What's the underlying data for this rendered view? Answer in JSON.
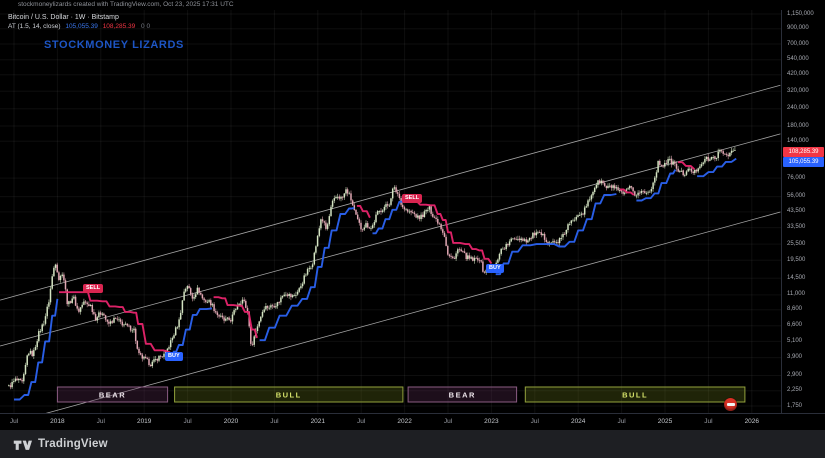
{
  "header": {
    "credit": "stockmoneylizards created with TradingView.com, Oct 23, 2025 17:31 UTC"
  },
  "legend": {
    "title": "Bitcoin / U.S. Dollar · 1W · Bitstamp",
    "symbol": "Bitcoin / U.S. Dollar",
    "interval": "1W",
    "exchange": "Bitstamp",
    "indicator": "AT (1.5, 14, close)",
    "value_blue": "105,055.39",
    "value_red": "108,285.39",
    "extra": "0 0"
  },
  "watermark": "STOCKMONEY LIZARDS",
  "footer": {
    "brand": "TradingView"
  },
  "sticker": {
    "icon": "no-entry-emoji"
  },
  "chart_data": {
    "type": "candlestick",
    "title": "Bitcoin / U.S. Dollar weekly with AT trailing-stop indicator and BEAR/BULL regime boxes",
    "x_axis": {
      "start_year": 2017.44,
      "end_year": 2026.08,
      "scale": "time"
    },
    "y_axis": {
      "scale": "log",
      "range": [
        1750,
        1150000
      ],
      "currency": "USD"
    },
    "grid": true,
    "colors": {
      "at_bull": "#2b63f2",
      "at_bear": "#e8246d",
      "candle_up": "#d4e4c2",
      "candle_down": "#e2a8b4",
      "trendline": "#cfcfcf",
      "grid": "rgba(255,255,255,0.055)",
      "bear_box_fill": "rgba(95,45,90,0.30)",
      "bear_box_stroke": "#8a5c82",
      "bear_box_text": "#ece4ea",
      "bull_box_fill": "rgba(110,130,30,0.28)",
      "bull_box_stroke": "#93a23c",
      "bull_box_text": "#d6e36a"
    },
    "last_price": {
      "red": "108,285.39",
      "blue": "105,055.39"
    },
    "y_ticks": [
      {
        "label": "1,150,000",
        "value": 1150000
      },
      {
        "label": "900,000",
        "value": 900000
      },
      {
        "label": "700,000",
        "value": 700000
      },
      {
        "label": "540,000",
        "value": 540000
      },
      {
        "label": "420,000",
        "value": 420000
      },
      {
        "label": "320,000",
        "value": 320000
      },
      {
        "label": "240,000",
        "value": 240000
      },
      {
        "label": "180,000",
        "value": 180000
      },
      {
        "label": "140,000",
        "value": 140000
      },
      {
        "label": "76,000",
        "value": 76000
      },
      {
        "label": "56,000",
        "value": 56000
      },
      {
        "label": "43,500",
        "value": 43500
      },
      {
        "label": "33,500",
        "value": 33500
      },
      {
        "label": "25,500",
        "value": 25500
      },
      {
        "label": "19,500",
        "value": 19500
      },
      {
        "label": "14,500",
        "value": 14500
      },
      {
        "label": "11,000",
        "value": 11000
      },
      {
        "label": "8,600",
        "value": 8600
      },
      {
        "label": "6,600",
        "value": 6600
      },
      {
        "label": "5,100",
        "value": 5100
      },
      {
        "label": "3,900",
        "value": 3900
      },
      {
        "label": "2,900",
        "value": 2900
      },
      {
        "label": "2,250",
        "value": 2250
      },
      {
        "label": "1,750",
        "value": 1750
      }
    ],
    "x_ticks": [
      {
        "label": "Jul",
        "year": 2017.5,
        "type": "month"
      },
      {
        "label": "2018",
        "year": 2018,
        "type": "year"
      },
      {
        "label": "Jul",
        "year": 2018.5,
        "type": "month"
      },
      {
        "label": "2019",
        "year": 2019,
        "type": "year"
      },
      {
        "label": "Jul",
        "year": 2019.5,
        "type": "month"
      },
      {
        "label": "2020",
        "year": 2020,
        "type": "year"
      },
      {
        "label": "Jul",
        "year": 2020.5,
        "type": "month"
      },
      {
        "label": "2021",
        "year": 2021,
        "type": "year"
      },
      {
        "label": "Jul",
        "year": 2021.5,
        "type": "month"
      },
      {
        "label": "2022",
        "year": 2022,
        "type": "year"
      },
      {
        "label": "Jul",
        "year": 2022.5,
        "type": "month"
      },
      {
        "label": "2023",
        "year": 2023,
        "type": "year"
      },
      {
        "label": "Jul",
        "year": 2023.5,
        "type": "month"
      },
      {
        "label": "2024",
        "year": 2024,
        "type": "year"
      },
      {
        "label": "Jul",
        "year": 2024.5,
        "type": "month"
      },
      {
        "label": "2025",
        "year": 2025,
        "type": "year"
      },
      {
        "label": "Jul",
        "year": 2025.5,
        "type": "month"
      },
      {
        "label": "2026",
        "year": 2026,
        "type": "year"
      }
    ],
    "trendlines": [
      {
        "x1": 2017.34,
        "p1": 10100,
        "x2": 2026.33,
        "p2": 354000
      },
      {
        "x1": 2017.34,
        "p1": 4725,
        "x2": 2026.33,
        "p2": 158000
      },
      {
        "x1": 2017.8,
        "p1": 1508,
        "x2": 2026.33,
        "p2": 43400
      }
    ],
    "regimes": [
      {
        "label": "BEAR",
        "type": "bear",
        "start": 2018.0,
        "end": 2019.27
      },
      {
        "label": "BULL",
        "type": "bull",
        "start": 2019.35,
        "end": 2021.98
      },
      {
        "label": "BEAR",
        "type": "bear",
        "start": 2022.04,
        "end": 2023.29
      },
      {
        "label": "BULL",
        "type": "bull",
        "start": 2023.39,
        "end": 2025.92
      }
    ],
    "signals": [
      {
        "label": "SELL",
        "side": "sell",
        "year": 2018.42,
        "price": 12300
      },
      {
        "label": "BUY",
        "side": "buy",
        "year": 2019.37,
        "price": 3950
      },
      {
        "label": "SELL",
        "side": "sell",
        "year": 2022.1,
        "price": 54500
      },
      {
        "label": "BUY",
        "side": "buy",
        "year": 2023.06,
        "price": 17000
      }
    ],
    "price_series": [
      [
        2017.44,
        2400
      ],
      [
        2017.52,
        2700
      ],
      [
        2017.6,
        2550
      ],
      [
        2017.66,
        4300
      ],
      [
        2017.72,
        4100
      ],
      [
        2017.78,
        5700
      ],
      [
        2017.85,
        7200
      ],
      [
        2017.9,
        9800
      ],
      [
        2017.95,
        16500
      ],
      [
        2017.98,
        19000
      ],
      [
        2018.02,
        14000
      ],
      [
        2018.06,
        16300
      ],
      [
        2018.12,
        9200
      ],
      [
        2018.18,
        10800
      ],
      [
        2018.24,
        8300
      ],
      [
        2018.3,
        9700
      ],
      [
        2018.38,
        9300
      ],
      [
        2018.44,
        7500
      ],
      [
        2018.52,
        8400
      ],
      [
        2018.58,
        6700
      ],
      [
        2018.66,
        7400
      ],
      [
        2018.74,
        6900
      ],
      [
        2018.82,
        6400
      ],
      [
        2018.88,
        6300
      ],
      [
        2018.93,
        4100
      ],
      [
        2019.0,
        3800
      ],
      [
        2019.08,
        3500
      ],
      [
        2019.16,
        3900
      ],
      [
        2019.24,
        4100
      ],
      [
        2019.32,
        5300
      ],
      [
        2019.4,
        7100
      ],
      [
        2019.46,
        11800
      ],
      [
        2019.5,
        13000
      ],
      [
        2019.55,
        10400
      ],
      [
        2019.62,
        12200
      ],
      [
        2019.68,
        10100
      ],
      [
        2019.76,
        9800
      ],
      [
        2019.84,
        8000
      ],
      [
        2019.92,
        7200
      ],
      [
        2020.0,
        7300
      ],
      [
        2020.08,
        9600
      ],
      [
        2020.14,
        10200
      ],
      [
        2020.2,
        8000
      ],
      [
        2020.23,
        4600
      ],
      [
        2020.3,
        6500
      ],
      [
        2020.38,
        9000
      ],
      [
        2020.46,
        9100
      ],
      [
        2020.54,
        9600
      ],
      [
        2020.62,
        11600
      ],
      [
        2020.7,
        10600
      ],
      [
        2020.78,
        11800
      ],
      [
        2020.86,
        15500
      ],
      [
        2020.94,
        19000
      ],
      [
        2021.0,
        29000
      ],
      [
        2021.04,
        40000
      ],
      [
        2021.1,
        32000
      ],
      [
        2021.16,
        49000
      ],
      [
        2021.22,
        57000
      ],
      [
        2021.28,
        54000
      ],
      [
        2021.33,
        63000
      ],
      [
        2021.38,
        54000
      ],
      [
        2021.44,
        40000
      ],
      [
        2021.5,
        33000
      ],
      [
        2021.56,
        35500
      ],
      [
        2021.62,
        33000
      ],
      [
        2021.68,
        42000
      ],
      [
        2021.76,
        47000
      ],
      [
        2021.82,
        49000
      ],
      [
        2021.87,
        65000
      ],
      [
        2021.92,
        59000
      ],
      [
        2021.98,
        47000
      ],
      [
        2022.04,
        43500
      ],
      [
        2022.1,
        42500
      ],
      [
        2022.16,
        39000
      ],
      [
        2022.22,
        42000
      ],
      [
        2022.28,
        46500
      ],
      [
        2022.34,
        40000
      ],
      [
        2022.4,
        36000
      ],
      [
        2022.46,
        29500
      ],
      [
        2022.5,
        21000
      ],
      [
        2022.56,
        20000
      ],
      [
        2022.62,
        23500
      ],
      [
        2022.68,
        21500
      ],
      [
        2022.74,
        20000
      ],
      [
        2022.8,
        19500
      ],
      [
        2022.86,
        20500
      ],
      [
        2022.91,
        16000
      ],
      [
        2022.98,
        16700
      ],
      [
        2023.04,
        17000
      ],
      [
        2023.1,
        23000
      ],
      [
        2023.18,
        25000
      ],
      [
        2023.26,
        28500
      ],
      [
        2023.34,
        28000
      ],
      [
        2023.42,
        27000
      ],
      [
        2023.5,
        30500
      ],
      [
        2023.58,
        29500
      ],
      [
        2023.66,
        26500
      ],
      [
        2023.74,
        26000
      ],
      [
        2023.82,
        28500
      ],
      [
        2023.88,
        34500
      ],
      [
        2023.94,
        37500
      ],
      [
        2024.0,
        43000
      ],
      [
        2024.06,
        43000
      ],
      [
        2024.12,
        52000
      ],
      [
        2024.2,
        68000
      ],
      [
        2024.26,
        73000
      ],
      [
        2024.32,
        64500
      ],
      [
        2024.4,
        66500
      ],
      [
        2024.46,
        61000
      ],
      [
        2024.52,
        58000
      ],
      [
        2024.6,
        64500
      ],
      [
        2024.66,
        57500
      ],
      [
        2024.72,
        61000
      ],
      [
        2024.8,
        59500
      ],
      [
        2024.86,
        68500
      ],
      [
        2024.92,
        97000
      ],
      [
        2024.98,
        95000
      ],
      [
        2025.04,
        102000
      ],
      [
        2025.1,
        97000
      ],
      [
        2025.16,
        84500
      ],
      [
        2025.22,
        82000
      ],
      [
        2025.28,
        87000
      ],
      [
        2025.34,
        83500
      ],
      [
        2025.4,
        95000
      ],
      [
        2025.46,
        104000
      ],
      [
        2025.52,
        103500
      ],
      [
        2025.58,
        108500
      ],
      [
        2025.64,
        118000
      ],
      [
        2025.7,
        112500
      ],
      [
        2025.76,
        115500
      ],
      [
        2025.8,
        124000
      ],
      [
        2025.82,
        108285
      ]
    ],
    "at_segments": [
      {
        "side": "bull",
        "points": [
          [
            2017.5,
            1950
          ],
          [
            2017.62,
            2100
          ],
          [
            2017.7,
            2600
          ],
          [
            2017.78,
            3600
          ],
          [
            2017.86,
            5100
          ],
          [
            2017.94,
            7800
          ],
          [
            2018.0,
            10300
          ]
        ]
      },
      {
        "side": "bear",
        "points": [
          [
            2018.02,
            11500
          ],
          [
            2018.32,
            11500
          ],
          [
            2018.38,
            10000
          ],
          [
            2018.52,
            9900
          ],
          [
            2018.6,
            9100
          ],
          [
            2018.72,
            9000
          ],
          [
            2018.78,
            8300
          ],
          [
            2018.88,
            8200
          ],
          [
            2018.93,
            6800
          ],
          [
            2019.02,
            4900
          ],
          [
            2019.12,
            4400
          ],
          [
            2019.3,
            4250
          ]
        ]
      },
      {
        "side": "bull",
        "points": [
          [
            2019.33,
            4300
          ],
          [
            2019.4,
            4800
          ],
          [
            2019.48,
            6200
          ],
          [
            2019.56,
            7900
          ],
          [
            2019.64,
            8700
          ],
          [
            2019.78,
            8800
          ]
        ]
      },
      {
        "side": "bear",
        "points": [
          [
            2019.8,
            10600
          ],
          [
            2019.9,
            10400
          ],
          [
            2019.96,
            9300
          ],
          [
            2020.08,
            9200
          ],
          [
            2020.16,
            8300
          ],
          [
            2020.24,
            6200
          ],
          [
            2020.3,
            5400
          ]
        ]
      },
      {
        "side": "bull",
        "points": [
          [
            2020.33,
            5200
          ],
          [
            2020.44,
            6400
          ],
          [
            2020.56,
            7800
          ],
          [
            2020.7,
            9200
          ],
          [
            2020.82,
            10300
          ],
          [
            2020.92,
            12500
          ],
          [
            2021.0,
            17500
          ],
          [
            2021.08,
            24000
          ],
          [
            2021.16,
            32000
          ],
          [
            2021.26,
            42000
          ],
          [
            2021.36,
            46000
          ],
          [
            2021.42,
            46500
          ]
        ]
      },
      {
        "side": "bear",
        "points": [
          [
            2021.45,
            48000
          ],
          [
            2021.52,
            44000
          ],
          [
            2021.6,
            39500
          ]
        ]
      },
      {
        "side": "bull",
        "points": [
          [
            2021.63,
            30500
          ],
          [
            2021.7,
            33000
          ],
          [
            2021.78,
            38500
          ],
          [
            2021.86,
            45000
          ],
          [
            2021.94,
            51500
          ],
          [
            2022.03,
            51500
          ]
        ]
      },
      {
        "side": "bear",
        "points": [
          [
            2022.06,
            53000
          ],
          [
            2022.18,
            49000
          ],
          [
            2022.3,
            48500
          ],
          [
            2022.38,
            42000
          ],
          [
            2022.44,
            38000
          ],
          [
            2022.5,
            31000
          ],
          [
            2022.56,
            26000
          ],
          [
            2022.7,
            25500
          ],
          [
            2022.78,
            23500
          ],
          [
            2022.86,
            23000
          ],
          [
            2022.92,
            20000
          ],
          [
            2023.0,
            18500
          ]
        ]
      },
      {
        "side": "bull",
        "points": [
          [
            2023.05,
            15500
          ],
          [
            2023.14,
            18500
          ],
          [
            2023.24,
            22500
          ],
          [
            2023.36,
            25000
          ],
          [
            2023.52,
            25500
          ],
          [
            2023.66,
            25500
          ],
          [
            2023.78,
            24500
          ],
          [
            2023.9,
            26500
          ],
          [
            2024.0,
            32000
          ],
          [
            2024.1,
            38500
          ],
          [
            2024.2,
            50000
          ],
          [
            2024.3,
            57500
          ],
          [
            2024.44,
            58500
          ]
        ]
      },
      {
        "side": "bear",
        "points": [
          [
            2024.48,
            63000
          ],
          [
            2024.56,
            60000
          ],
          [
            2024.64,
            57500
          ]
        ]
      },
      {
        "side": "bull",
        "points": [
          [
            2024.67,
            52500
          ],
          [
            2024.78,
            54500
          ],
          [
            2024.88,
            59000
          ],
          [
            2024.96,
            70000
          ],
          [
            2025.06,
            82000
          ],
          [
            2025.12,
            87500
          ]
        ]
      },
      {
        "side": "bear",
        "points": [
          [
            2025.15,
            99000
          ],
          [
            2025.24,
            93000
          ],
          [
            2025.34,
            88000
          ]
        ]
      },
      {
        "side": "bull",
        "points": [
          [
            2025.37,
            78500
          ],
          [
            2025.5,
            84000
          ],
          [
            2025.6,
            92000
          ],
          [
            2025.7,
            99500
          ],
          [
            2025.82,
            105055
          ]
        ]
      }
    ]
  }
}
